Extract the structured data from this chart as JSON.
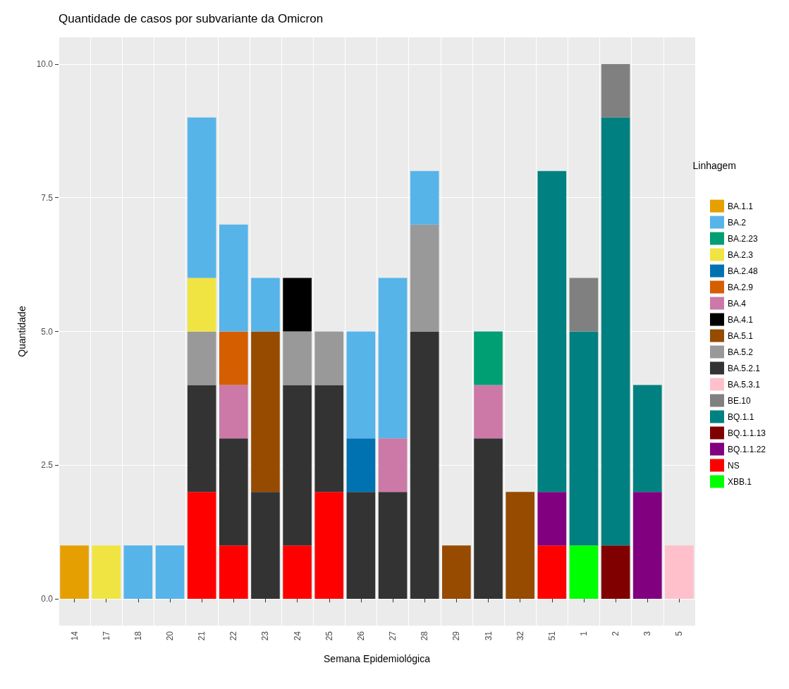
{
  "chart_data": {
    "type": "bar",
    "title": "Quantidade de casos por subvariante da Omicron",
    "xlabel": "Semana Epidemiológica",
    "ylabel": "Quantidade",
    "legend_title": "Linhagem",
    "legend": "right",
    "grid": true,
    "stacked": true,
    "categories": [
      "14",
      "17",
      "18",
      "20",
      "21",
      "22",
      "23",
      "24",
      "25",
      "26",
      "27",
      "28",
      "29",
      "31",
      "32",
      "51",
      "1",
      "2",
      "3",
      "5"
    ],
    "ylim": [
      -0.5,
      10.5
    ],
    "yticks": [
      {
        "value": 0,
        "label": "0.0"
      },
      {
        "value": 2.5,
        "label": "2.5"
      },
      {
        "value": 5,
        "label": "5.0"
      },
      {
        "value": 7.5,
        "label": "7.5"
      },
      {
        "value": 10,
        "label": "10.0"
      }
    ],
    "series": [
      {
        "name": "XBB.1",
        "color": "#00ff00",
        "values": [
          null,
          null,
          null,
          null,
          null,
          null,
          null,
          null,
          null,
          null,
          null,
          null,
          null,
          null,
          null,
          null,
          1,
          null,
          null,
          null
        ]
      },
      {
        "name": "NS",
        "color": "#ff0000",
        "values": [
          null,
          null,
          null,
          null,
          2,
          1,
          null,
          1,
          2,
          null,
          null,
          null,
          null,
          null,
          null,
          1,
          null,
          null,
          null,
          null
        ]
      },
      {
        "name": "BQ.1.1.22",
        "color": "#800080",
        "values": [
          null,
          null,
          null,
          null,
          null,
          null,
          null,
          null,
          null,
          null,
          null,
          null,
          null,
          null,
          null,
          1,
          null,
          null,
          2,
          null
        ]
      },
      {
        "name": "BQ.1.1.13",
        "color": "#800000",
        "values": [
          null,
          null,
          null,
          null,
          null,
          null,
          null,
          null,
          null,
          null,
          null,
          null,
          null,
          null,
          null,
          null,
          null,
          1,
          null,
          null
        ]
      },
      {
        "name": "BQ.1.1",
        "color": "#008080",
        "values": [
          null,
          null,
          null,
          null,
          null,
          null,
          null,
          null,
          null,
          null,
          null,
          null,
          null,
          null,
          null,
          6,
          4,
          8,
          2,
          null
        ]
      },
      {
        "name": "BE.10",
        "color": "#808080",
        "values": [
          null,
          null,
          null,
          null,
          null,
          null,
          null,
          null,
          null,
          null,
          null,
          null,
          null,
          null,
          null,
          null,
          1,
          1,
          null,
          null
        ]
      },
      {
        "name": "BA.5.3.1",
        "color": "#ffc0cb",
        "values": [
          null,
          null,
          null,
          null,
          null,
          null,
          null,
          null,
          null,
          null,
          null,
          null,
          null,
          null,
          null,
          null,
          null,
          null,
          null,
          1
        ]
      },
      {
        "name": "BA.5.2.1",
        "color": "#333333",
        "values": [
          null,
          null,
          null,
          null,
          2,
          2,
          2,
          3,
          2,
          2,
          2,
          5,
          null,
          3,
          null,
          null,
          null,
          null,
          null,
          null
        ]
      },
      {
        "name": "BA.5.2",
        "color": "#999999",
        "values": [
          null,
          null,
          null,
          null,
          1,
          null,
          null,
          1,
          1,
          null,
          null,
          2,
          null,
          null,
          null,
          null,
          null,
          null,
          null,
          null
        ]
      },
      {
        "name": "BA.5.1",
        "color": "#964b00",
        "values": [
          null,
          null,
          null,
          null,
          null,
          null,
          3,
          null,
          null,
          null,
          null,
          null,
          1,
          null,
          2,
          null,
          null,
          null,
          null,
          null
        ]
      },
      {
        "name": "BA.4.1",
        "color": "#000000",
        "values": [
          null,
          null,
          null,
          null,
          null,
          null,
          null,
          1,
          null,
          null,
          null,
          null,
          null,
          null,
          null,
          null,
          null,
          null,
          null,
          null
        ]
      },
      {
        "name": "BA.4",
        "color": "#cc79a7",
        "values": [
          null,
          null,
          null,
          null,
          null,
          1,
          null,
          null,
          null,
          null,
          1,
          null,
          null,
          1,
          null,
          null,
          null,
          null,
          null,
          null
        ]
      },
      {
        "name": "BA.2.9",
        "color": "#d55e00",
        "values": [
          null,
          null,
          null,
          null,
          null,
          1,
          null,
          null,
          null,
          null,
          null,
          null,
          null,
          null,
          null,
          null,
          null,
          null,
          null,
          null
        ]
      },
      {
        "name": "BA.2.48",
        "color": "#0072b2",
        "values": [
          null,
          null,
          null,
          null,
          null,
          null,
          null,
          null,
          null,
          1,
          null,
          null,
          null,
          null,
          null,
          null,
          null,
          null,
          null,
          null
        ]
      },
      {
        "name": "BA.2.3",
        "color": "#f0e442",
        "values": [
          null,
          1,
          null,
          null,
          1,
          null,
          null,
          null,
          null,
          null,
          null,
          null,
          null,
          null,
          null,
          null,
          null,
          null,
          null,
          null
        ]
      },
      {
        "name": "BA.2.23",
        "color": "#009e73",
        "values": [
          null,
          null,
          null,
          null,
          null,
          null,
          null,
          null,
          null,
          null,
          null,
          null,
          null,
          1,
          null,
          null,
          null,
          null,
          null,
          null
        ]
      },
      {
        "name": "BA.2",
        "color": "#56b4e9",
        "values": [
          null,
          null,
          1,
          1,
          3,
          2,
          1,
          null,
          null,
          2,
          3,
          1,
          null,
          null,
          null,
          null,
          null,
          null,
          null,
          null
        ]
      },
      {
        "name": "BA.1.1",
        "color": "#e69f00",
        "values": [
          1,
          null,
          null,
          null,
          null,
          null,
          null,
          null,
          null,
          null,
          null,
          null,
          null,
          null,
          null,
          null,
          null,
          null,
          null,
          null
        ]
      }
    ]
  }
}
